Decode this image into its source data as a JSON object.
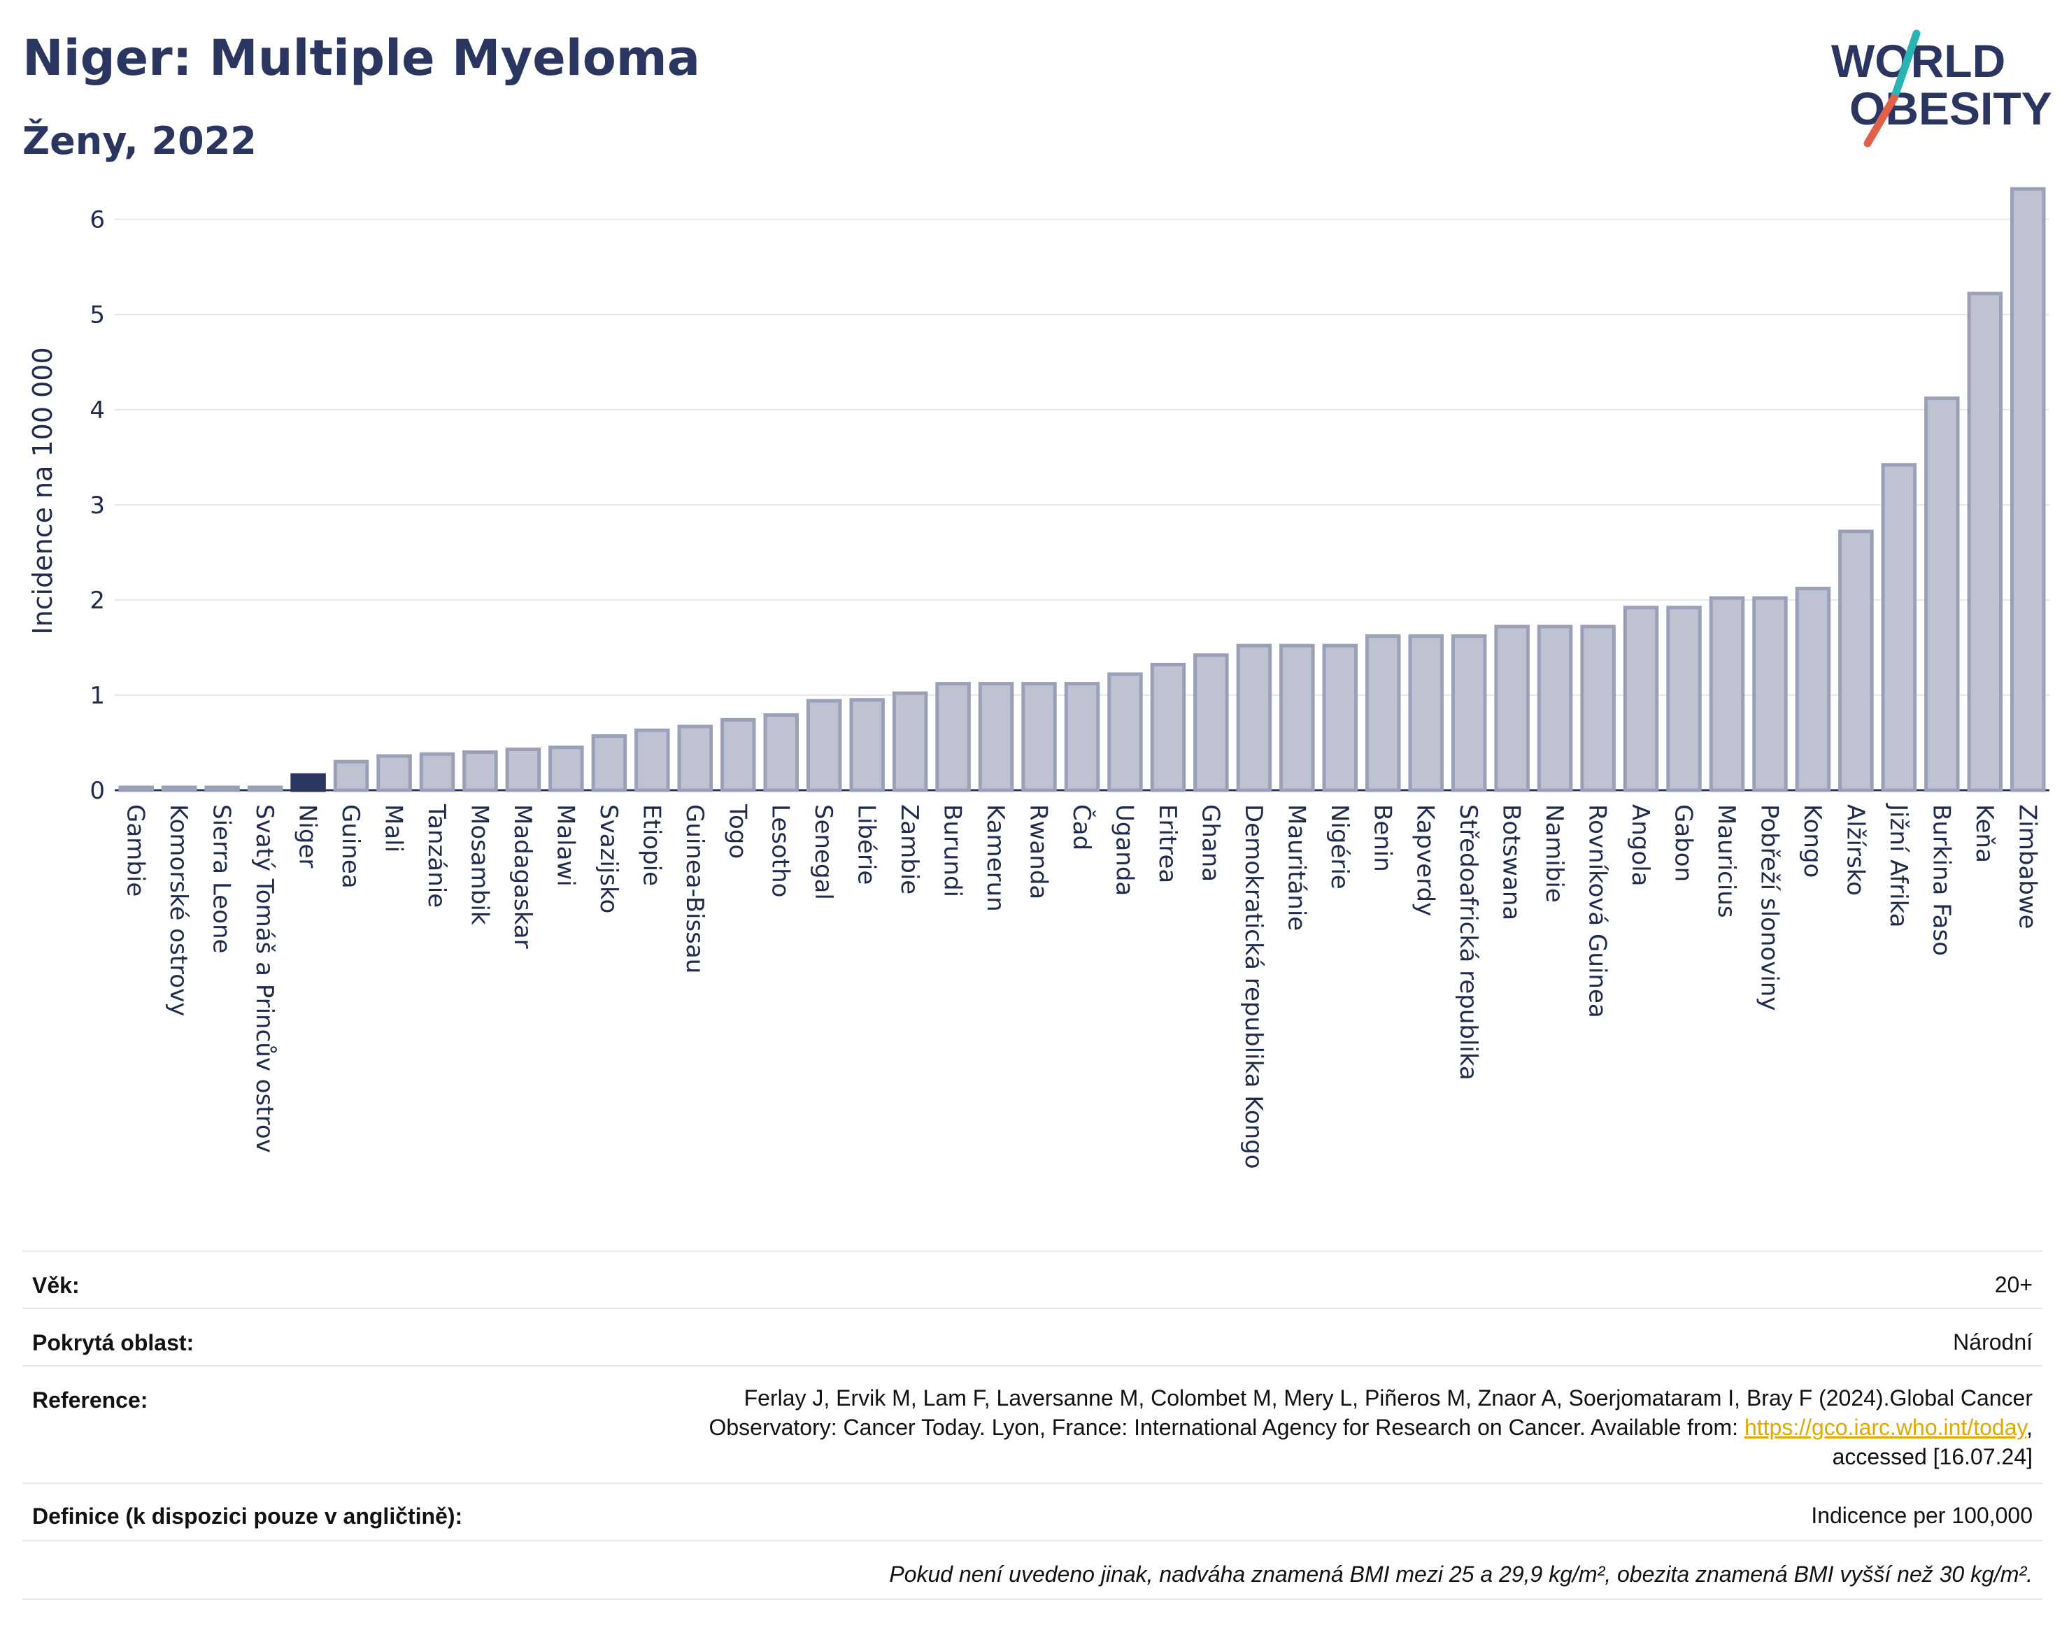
{
  "header": {
    "title": "Niger: Multiple Myeloma",
    "subtitle": "Ženy, 2022"
  },
  "logo": {
    "line1": "WORLD",
    "line2": "OBESITY",
    "colors": {
      "text": "#2a3560",
      "slash_teal": "#2bb3b1",
      "slash_red": "#e0604a"
    }
  },
  "chart_data": {
    "type": "bar",
    "ylabel": "Incidence na 100 000",
    "ylim": [
      0,
      6.6
    ],
    "yticks": [
      0,
      1,
      2,
      3,
      4,
      5,
      6
    ],
    "grid": true,
    "highlight": "Niger",
    "colors": {
      "bar": "#bfc3d1",
      "bar_stroke": "#9aa0b8",
      "highlight": "#2a3560",
      "grid": "#e6e8ef"
    },
    "categories": [
      "Gambie",
      "Komorské ostrovy",
      "Sierra Leone",
      "Svatý Tomáš a Princův ostrov",
      "Niger",
      "Guinea",
      "Mali",
      "Tanzánie",
      "Mosambik",
      "Madagaskar",
      "Malawi",
      "Svazijsko",
      "Etiopie",
      "Guinea-Bissau",
      "Togo",
      "Lesotho",
      "Senegal",
      "Libérie",
      "Zambie",
      "Burundi",
      "Kamerun",
      "Rwanda",
      "Čad",
      "Uganda",
      "Eritrea",
      "Ghana",
      "Demokratická republika Kongo",
      "Mauritánie",
      "Nigérie",
      "Benin",
      "Kapverdy",
      "Středoafrická republika",
      "Botswana",
      "Namibie",
      "Rovníková Guinea",
      "Angola",
      "Gabon",
      "Mauricius",
      "Pobřeží slonoviny",
      "Kongo",
      "Alžírsko",
      "Jižní Afrika",
      "Burkina Faso",
      "Keňa",
      "Zimbabwe"
    ],
    "values": [
      0.03,
      0.03,
      0.03,
      0.03,
      0.16,
      0.3,
      0.36,
      0.38,
      0.4,
      0.43,
      0.45,
      0.57,
      0.63,
      0.67,
      0.74,
      0.79,
      0.94,
      0.95,
      1.02,
      1.12,
      1.12,
      1.12,
      1.12,
      1.22,
      1.32,
      1.42,
      1.52,
      1.52,
      1.52,
      1.62,
      1.62,
      1.62,
      1.72,
      1.72,
      1.72,
      1.92,
      1.92,
      2.02,
      2.02,
      2.12,
      2.72,
      3.42,
      4.12,
      5.22,
      6.32
    ]
  },
  "info": {
    "age_label": "Věk:",
    "age_value": "20+",
    "area_label": "Pokrytá oblast:",
    "area_value": "Národní",
    "ref_label": "Reference:",
    "ref_line1": "Ferlay J, Ervik M, Lam F, Laversanne M, Colombet M, Mery L, Piñeros M, Znaor A, Soerjomataram I, Bray F (2024).Global Cancer",
    "ref_line2_prefix": "Observatory: Cancer Today. Lyon, France: International Agency for Research on Cancer. Available from: ",
    "ref_link": "https://gco.iarc.who.int/today",
    "ref_line2_suffix": ",",
    "ref_line3": "accessed [16.07.24]",
    "def_label": "Definice (k dispozici pouze v angličtině):",
    "def_value": "Indicence per 100,000",
    "footnote": "Pokud není uvedeno jinak, nadváha znamená BMI mezi 25 a 29,9 kg/m², obezita znamená BMI vyšší než 30 kg/m²."
  }
}
